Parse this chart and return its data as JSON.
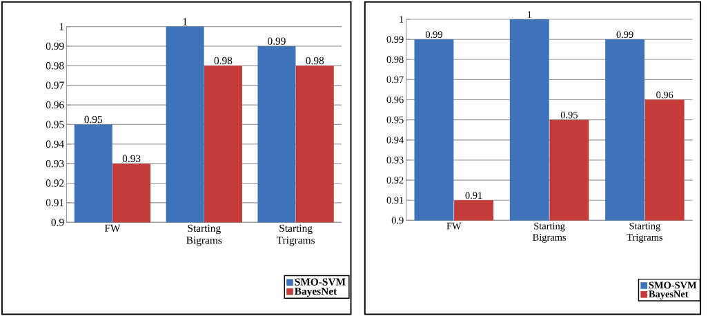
{
  "chart_data": [
    {
      "type": "bar",
      "categories": [
        "FW",
        "Starting Bigrams",
        "Starting Trigrams"
      ],
      "series": [
        {
          "name": "SMO-SVM",
          "color": "#3f72b8",
          "values": [
            0.95,
            1,
            0.99
          ]
        },
        {
          "name": "BayesNet",
          "color": "#c43c3a",
          "values": [
            0.93,
            0.98,
            0.98
          ]
        }
      ],
      "ylim": [
        0.9,
        1
      ],
      "yticks": [
        0.9,
        0.91,
        0.92,
        0.93,
        0.94,
        0.95,
        0.96,
        0.97,
        0.98,
        0.99,
        1
      ],
      "grid": "y",
      "legend": "bottom right",
      "data_labels": true
    },
    {
      "type": "bar",
      "categories": [
        "FW",
        "Starting Bigrams",
        "Starting Trigrams"
      ],
      "series": [
        {
          "name": "SMO-SVM",
          "color": "#3f72b8",
          "values": [
            0.99,
            1,
            0.99
          ]
        },
        {
          "name": "BayesNet",
          "color": "#c43c3a",
          "values": [
            0.91,
            0.95,
            0.96
          ]
        }
      ],
      "ylim": [
        0.9,
        1
      ],
      "yticks": [
        0.9,
        0.91,
        0.92,
        0.93,
        0.94,
        0.95,
        0.96,
        0.97,
        0.98,
        0.99,
        1
      ],
      "grid": "y",
      "legend": "bottom right",
      "data_labels": true
    }
  ]
}
